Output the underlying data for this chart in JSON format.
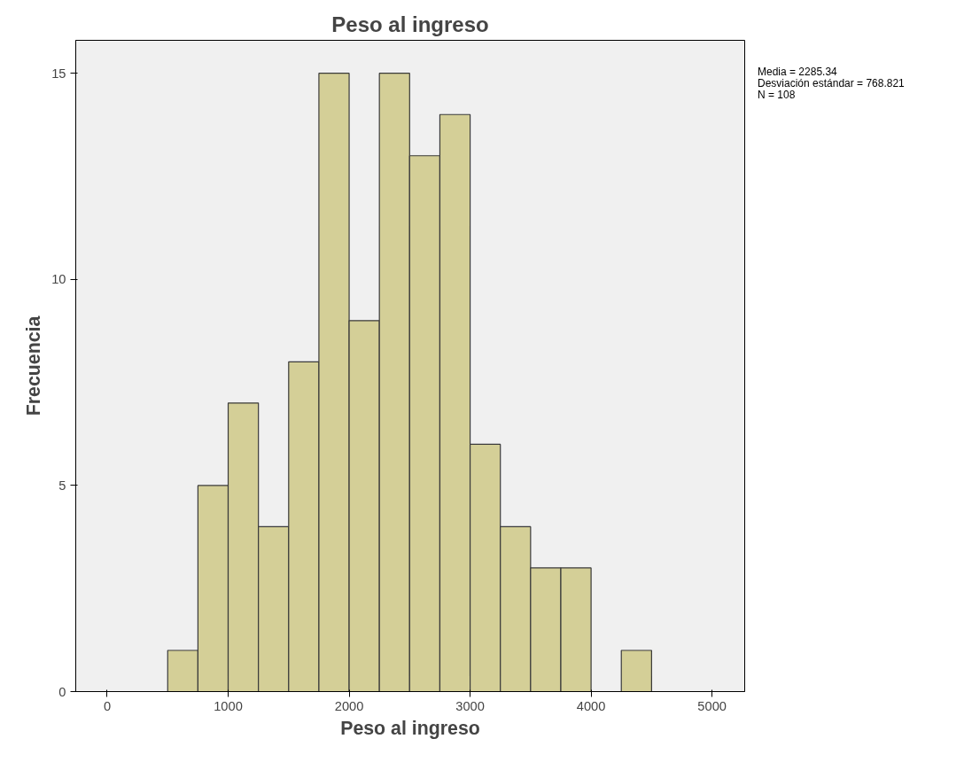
{
  "chart_data": {
    "type": "histogram",
    "title": "Peso al ingreso",
    "xlabel": "Peso al ingreso",
    "ylabel": "Frecuencia",
    "bins": [
      500,
      750,
      1000,
      1250,
      1500,
      1750,
      2000,
      2250,
      2500,
      2750,
      3000,
      3250,
      3500,
      3750,
      4000,
      4250,
      4500
    ],
    "values": [
      1,
      5,
      7,
      4,
      8,
      15,
      9,
      15,
      13,
      14,
      6,
      4,
      3,
      3,
      0,
      1
    ],
    "color": "#d4cf97",
    "xlim": [
      -260,
      5270
    ],
    "xticks": [
      0,
      1000,
      2000,
      3000,
      4000,
      5000
    ],
    "ylim": [
      0,
      15.8
    ],
    "yticks": [
      0,
      5,
      10,
      15
    ],
    "grid": false,
    "annotations": [
      "Media = 2285.34",
      "Desviación estándar = 768.821",
      "N = 108"
    ]
  }
}
